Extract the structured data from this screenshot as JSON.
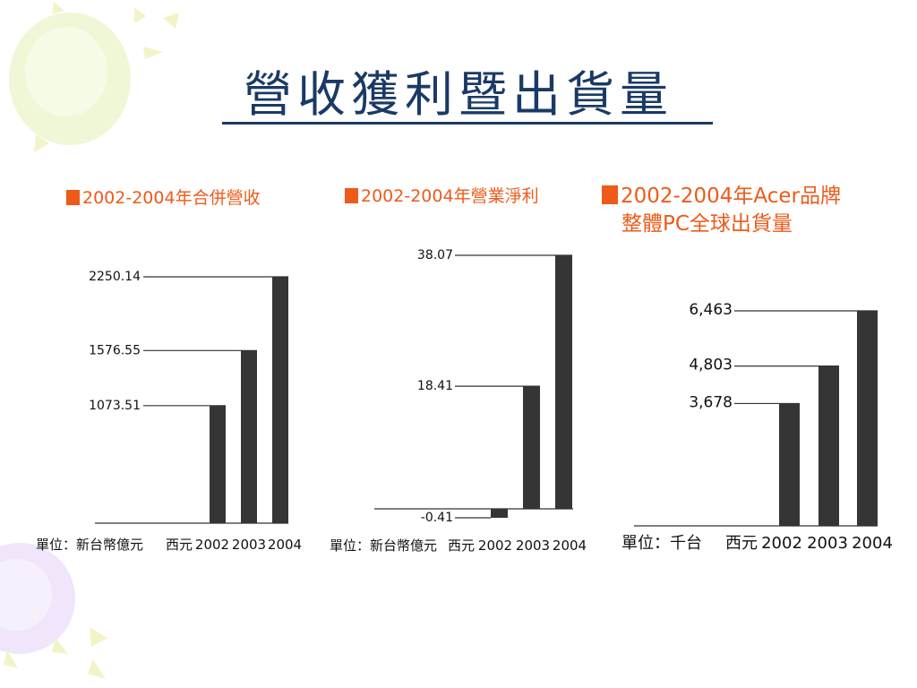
{
  "title": "營收獲利暨出貨量",
  "chart_data": [
    {
      "type": "bar",
      "title": "2002-2004年合併營收",
      "categories": [
        "2002",
        "2003",
        "2004"
      ],
      "values": [
        1073.51,
        1576.55,
        2250.14
      ],
      "value_labels": [
        "1073.51",
        "1576.55",
        "2250.14"
      ],
      "x_prefix": "西元",
      "unit": "單位：新台幣億元",
      "ylim": [
        0,
        2250.14
      ],
      "grid": false,
      "legend": "none"
    },
    {
      "type": "bar",
      "title": "2002-2004年營業淨利",
      "categories": [
        "2002",
        "2003",
        "2004"
      ],
      "values": [
        -0.41,
        18.41,
        38.07
      ],
      "value_labels": [
        "-0.41",
        "18.41",
        "38.07"
      ],
      "x_prefix": "西元",
      "unit": "單位：新台幣億元",
      "ylim": [
        -0.41,
        38.07
      ],
      "grid": false,
      "legend": "none"
    },
    {
      "type": "bar",
      "title": "2002-2004年Acer品牌整體PC全球出貨量",
      "title_lines": [
        "2002-2004年Acer品牌",
        "整體PC全球出貨量"
      ],
      "categories": [
        "2002",
        "2003",
        "2004"
      ],
      "values": [
        3678,
        4803,
        6463
      ],
      "value_labels": [
        "3,678",
        "4,803",
        "6,463"
      ],
      "x_prefix": "西元",
      "unit": "單位：千台",
      "ylim": [
        0,
        6463
      ],
      "grid": false,
      "legend": "none"
    }
  ]
}
